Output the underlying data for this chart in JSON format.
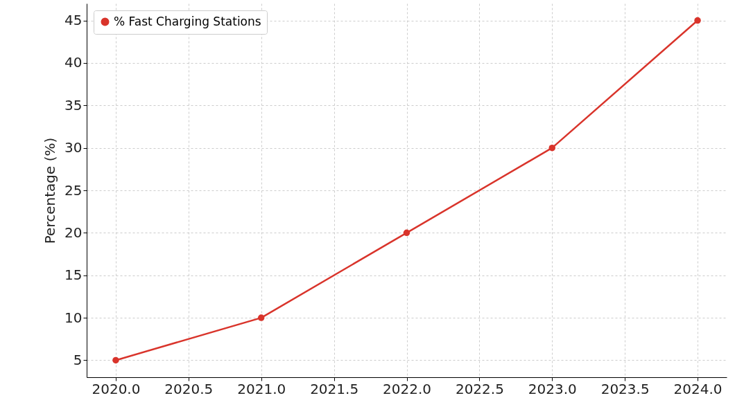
{
  "chart_data": {
    "type": "line",
    "ylabel": "Percentage (%)",
    "x": [
      2020,
      2021,
      2022,
      2023,
      2024
    ],
    "series": [
      {
        "name": "% Fast Charging Stations",
        "color": "#d9342b",
        "values": [
          5,
          10,
          20,
          30,
          45
        ]
      }
    ],
    "xlim": [
      2019.8,
      2024.2
    ],
    "xticks": [
      {
        "value": 2020,
        "label": "2020.0"
      },
      {
        "value": 2020.5,
        "label": "2020.5"
      },
      {
        "value": 2021,
        "label": "2021.0"
      },
      {
        "value": 2021.5,
        "label": "2021.5"
      },
      {
        "value": 2022,
        "label": "2022.0"
      },
      {
        "value": 2022.5,
        "label": "2022.5"
      },
      {
        "value": 2023,
        "label": "2023.0"
      },
      {
        "value": 2023.5,
        "label": "2023.5"
      },
      {
        "value": 2024,
        "label": "2024.0"
      }
    ],
    "ylim": [
      3,
      47
    ],
    "yticks": [
      5,
      10,
      15,
      20,
      25,
      30,
      35,
      40,
      45
    ],
    "grid": true,
    "legend": "top left",
    "marker": "circle",
    "line_style": "solid"
  }
}
